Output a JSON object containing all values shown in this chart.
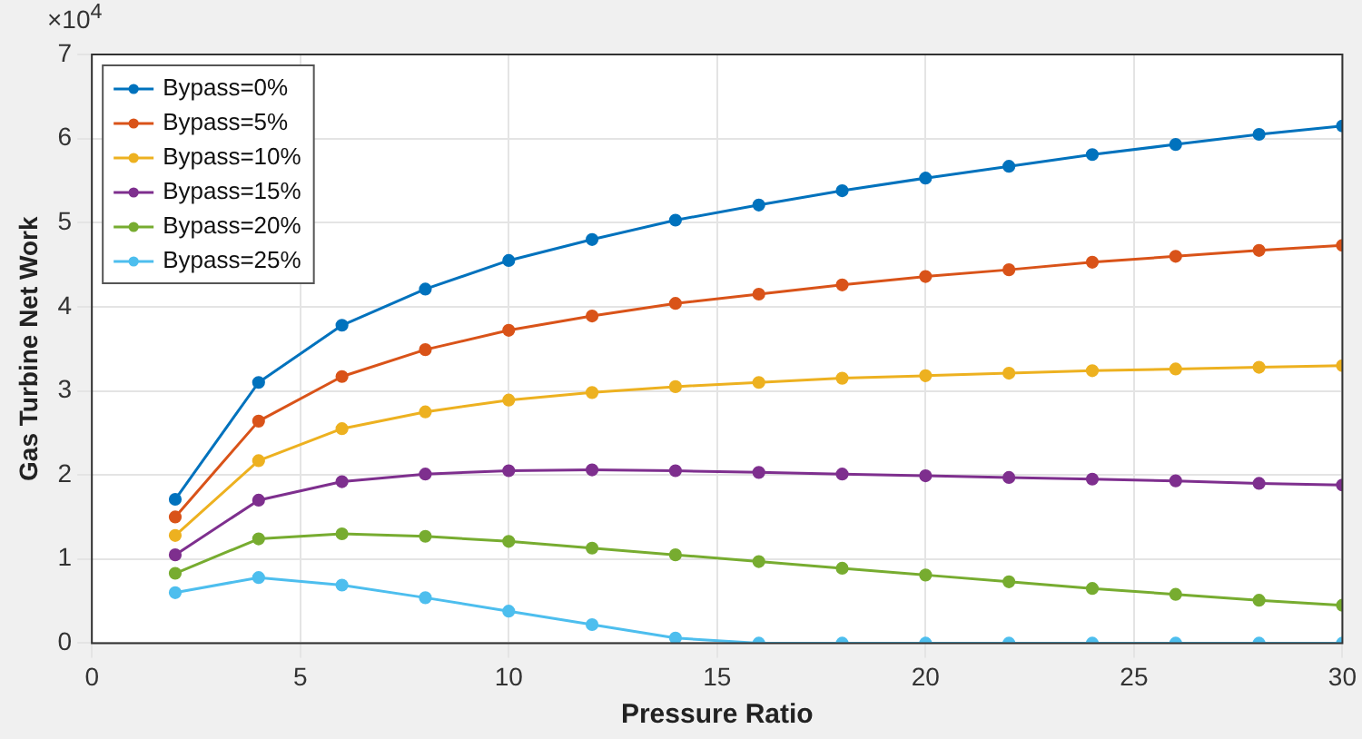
{
  "chart_data": {
    "type": "line",
    "xlabel": "Pressure Ratio",
    "ylabel": "Gas Turbine Net Work",
    "annotations": [
      "×10$^{4}$"
    ],
    "x": [
      2,
      4,
      6,
      8,
      10,
      12,
      14,
      16,
      18,
      20,
      22,
      24,
      26,
      28,
      30
    ],
    "series": [
      {
        "name": "Bypass=0%",
        "color": "#0072bd",
        "values": [
          1.71,
          3.1,
          3.78,
          4.21,
          4.55,
          4.8,
          5.03,
          5.21,
          5.38,
          5.53,
          5.67,
          5.81,
          5.93,
          6.05,
          6.15
        ]
      },
      {
        "name": "Bypass=5%",
        "color": "#d95319",
        "values": [
          1.5,
          2.64,
          3.17,
          3.49,
          3.72,
          3.89,
          4.04,
          4.15,
          4.26,
          4.36,
          4.44,
          4.53,
          4.6,
          4.67,
          4.73
        ]
      },
      {
        "name": "Bypass=10%",
        "color": "#edb120",
        "values": [
          1.28,
          2.17,
          2.55,
          2.75,
          2.89,
          2.98,
          3.05,
          3.1,
          3.15,
          3.18,
          3.21,
          3.24,
          3.26,
          3.28,
          3.3
        ]
      },
      {
        "name": "Bypass=15%",
        "color": "#7e2f8e",
        "values": [
          1.05,
          1.7,
          1.92,
          2.01,
          2.05,
          2.06,
          2.05,
          2.03,
          2.01,
          1.99,
          1.97,
          1.95,
          1.93,
          1.9,
          1.88
        ]
      },
      {
        "name": "Bypass=20%",
        "color": "#77ac30",
        "values": [
          0.83,
          1.24,
          1.3,
          1.27,
          1.21,
          1.13,
          1.05,
          0.97,
          0.89,
          0.81,
          0.73,
          0.65,
          0.58,
          0.51,
          0.45
        ]
      },
      {
        "name": "Bypass=25%",
        "color": "#4dbeee",
        "values": [
          0.6,
          0.78,
          0.69,
          0.54,
          0.38,
          0.22,
          0.06,
          0,
          0,
          0,
          0,
          0,
          0,
          0,
          0
        ]
      }
    ],
    "xlim": [
      0,
      30
    ],
    "xticks": [
      0,
      5,
      10,
      15,
      20,
      25,
      30
    ],
    "ylim": [
      0,
      7
    ],
    "yticks": [
      0,
      1,
      2,
      3,
      4,
      5,
      6,
      7
    ],
    "grid": true,
    "legend": "top left",
    "marker": "circle",
    "line_style": "solid"
  }
}
